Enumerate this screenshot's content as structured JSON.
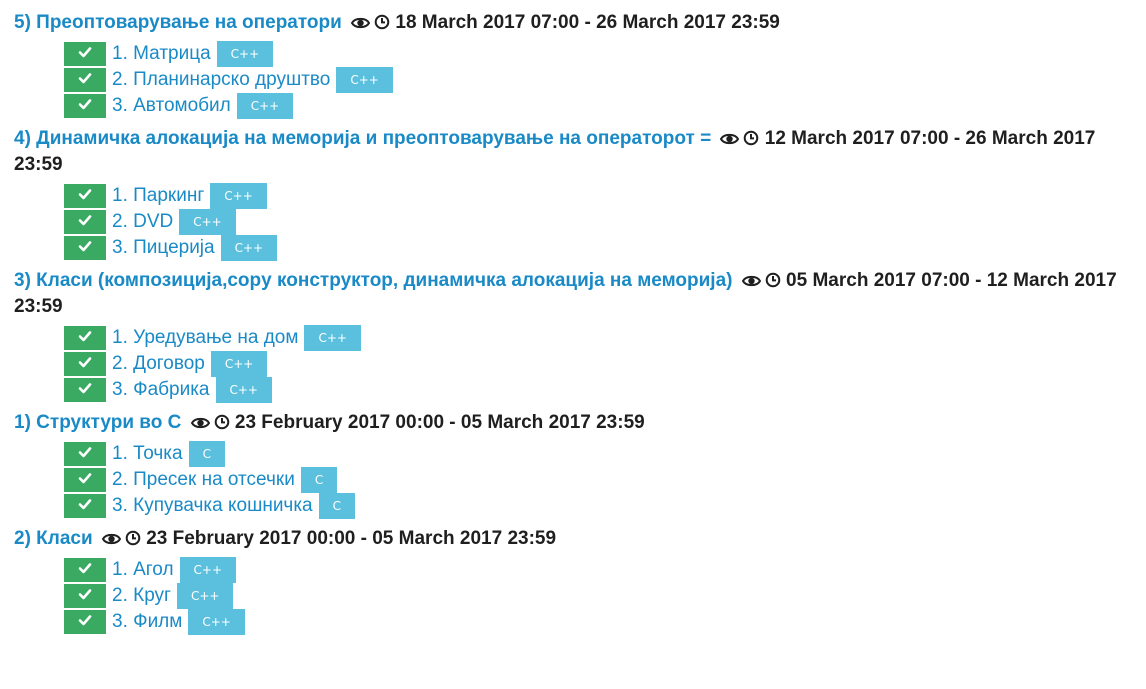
{
  "colors": {
    "link": "#1a8ac7",
    "check_green": "#3aaa63",
    "badge_blue": "#5bc0de"
  },
  "icons": {
    "eye": "eye-icon",
    "clock": "clock-icon",
    "check": "check-icon"
  },
  "sections": [
    {
      "title": "5) Преоптоварување на оператори",
      "dates": "18 March 2017 07:00 - 26 March 2017 23:59",
      "tasks": [
        {
          "label": "1. Матрица",
          "lang": "C++"
        },
        {
          "label": "2. Планинарско друштво",
          "lang": "C++"
        },
        {
          "label": "3. Автомобил",
          "lang": "C++"
        }
      ]
    },
    {
      "title": "4) Динамичка алокација на меморија и преоптоварување на операторот =",
      "dates": "12 March 2017 07:00 - 26 March 2017 23:59",
      "tasks": [
        {
          "label": "1. Паркинг",
          "lang": "C++"
        },
        {
          "label": "2. DVD",
          "lang": "C++"
        },
        {
          "label": "3. Пицерија",
          "lang": "C++"
        }
      ]
    },
    {
      "title": "3) Класи (композиција,copy конструктор, динамичка алокација на меморија)",
      "dates": "05 March 2017 07:00 - 12 March 2017 23:59",
      "tasks": [
        {
          "label": "1. Уредување на дом",
          "lang": "C++"
        },
        {
          "label": "2. Договор",
          "lang": "C++"
        },
        {
          "label": "3. Фабрика",
          "lang": "C++"
        }
      ]
    },
    {
      "title": "1) Структури во C",
      "dates": "23 February 2017 00:00 - 05 March 2017 23:59",
      "tasks": [
        {
          "label": "1. Точка",
          "lang": "C"
        },
        {
          "label": "2. Пресек на отсечки",
          "lang": "C"
        },
        {
          "label": "3. Купувачка кошничка",
          "lang": "C"
        }
      ]
    },
    {
      "title": "2) Класи",
      "dates": "23 February 2017 00:00 - 05 March 2017 23:59",
      "tasks": [
        {
          "label": "1. Агол",
          "lang": "C++"
        },
        {
          "label": "2. Круг",
          "lang": "C++"
        },
        {
          "label": "3. Филм",
          "lang": "C++"
        }
      ]
    }
  ]
}
